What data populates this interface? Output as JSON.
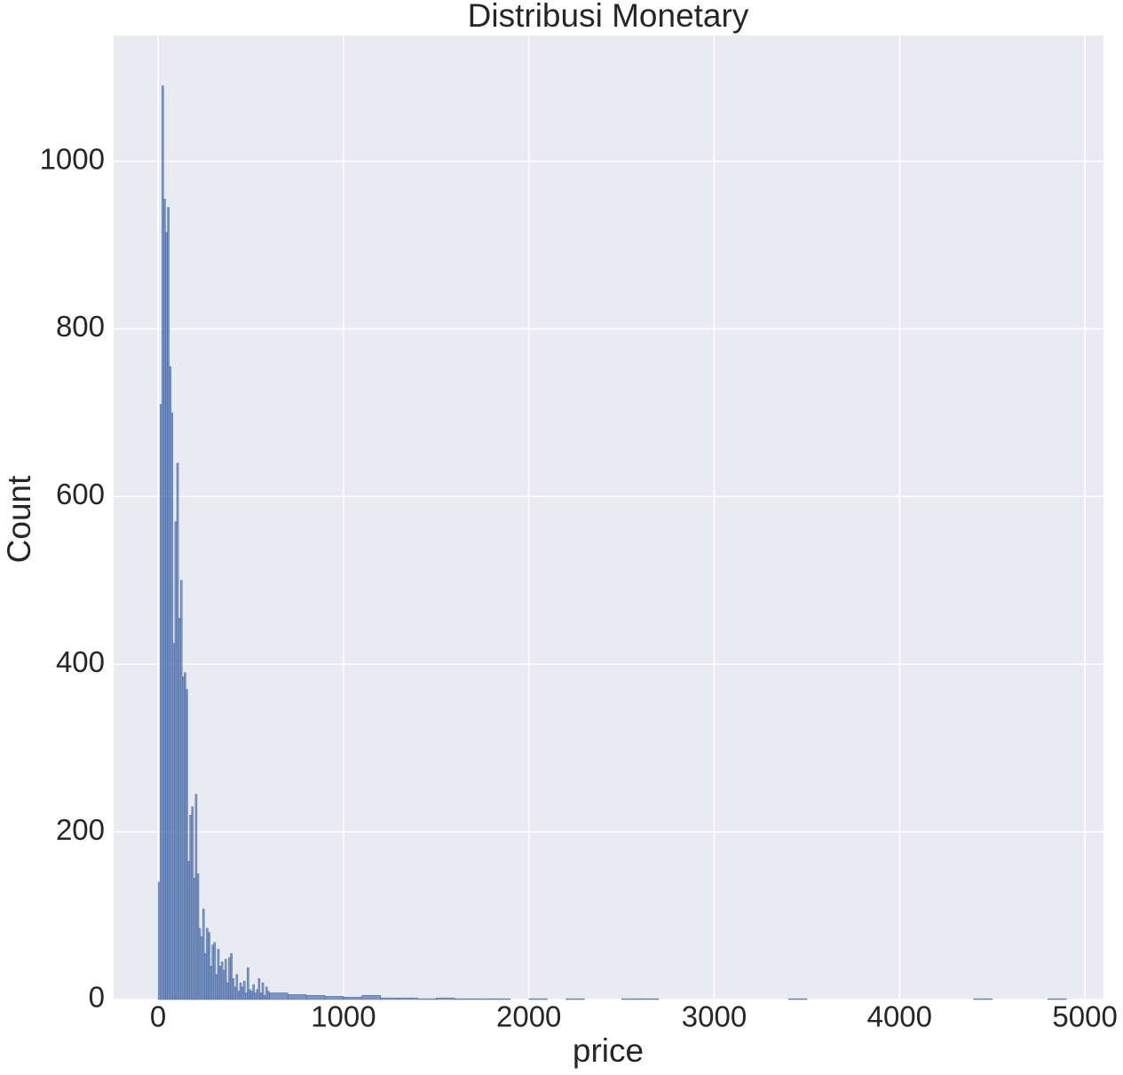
{
  "chart_data": {
    "type": "histogram",
    "title": "Distribusi Monetary",
    "x_label": "price",
    "y_label": "Count",
    "bins": [
      0,
      10,
      20,
      30,
      40,
      50,
      60,
      70,
      80,
      90,
      100,
      110,
      120,
      130,
      140,
      150,
      160,
      170,
      180,
      190,
      200,
      210,
      220,
      230,
      240,
      250,
      260,
      270,
      280,
      290,
      300,
      310,
      320,
      330,
      340,
      350,
      360,
      370,
      380,
      390,
      400,
      410,
      420,
      430,
      440,
      450,
      460,
      470,
      480,
      490,
      500,
      510,
      520,
      530,
      540,
      550,
      560,
      570,
      580,
      590,
      600,
      700,
      800,
      900,
      1000,
      1100,
      1200,
      1300,
      1400,
      1500,
      1600,
      1700,
      1800,
      1900,
      2000,
      2100,
      2200,
      2300,
      2400,
      2500,
      2600,
      2700,
      2800,
      2900,
      3000,
      3100,
      3200,
      3300,
      3400,
      3500,
      3600,
      3700,
      3800,
      3900,
      4000,
      4100,
      4200,
      4300,
      4400,
      4500,
      4600,
      4700,
      4800,
      4900
    ],
    "counts": [
      140,
      710,
      1090,
      955,
      915,
      945,
      755,
      700,
      425,
      570,
      640,
      455,
      500,
      385,
      390,
      370,
      165,
      220,
      230,
      145,
      245,
      150,
      85,
      75,
      108,
      55,
      85,
      80,
      40,
      65,
      68,
      30,
      60,
      40,
      45,
      35,
      48,
      20,
      50,
      55,
      25,
      15,
      30,
      10,
      20,
      15,
      22,
      8,
      38,
      12,
      10,
      18,
      8,
      12,
      25,
      8,
      20,
      5,
      15,
      10,
      8,
      6,
      5,
      4,
      3,
      5,
      2,
      2,
      1,
      2,
      1,
      1,
      1,
      0,
      1,
      0,
      1,
      0,
      0,
      1,
      1,
      0,
      0,
      0,
      0,
      0,
      0,
      0,
      1,
      0,
      0,
      0,
      0,
      0,
      0,
      0,
      0,
      0,
      1,
      0,
      0,
      0,
      1
    ],
    "color": "#4c72b0",
    "xlim": [
      -240,
      5100
    ],
    "ylim": [
      0,
      1150
    ],
    "xticks": [
      0,
      1000,
      2000,
      3000,
      4000,
      5000
    ],
    "yticks": [
      0,
      200,
      400,
      600,
      800,
      1000
    ],
    "grid": true
  }
}
